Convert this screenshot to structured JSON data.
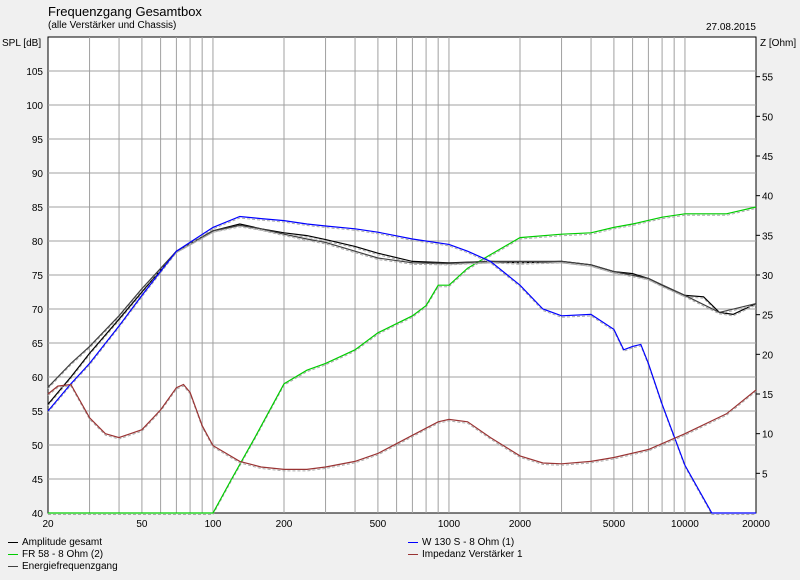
{
  "chart_data": {
    "type": "line",
    "title": "Frequenzgang Gesamtbox",
    "subtitle": "(alle Verstärker und Chassis)",
    "date": "27.08.2015",
    "ylabel_left": "SPL [dB]",
    "ylabel_right": "Z [Ohm]",
    "xscale": "log",
    "xlim": [
      20,
      20000
    ],
    "ylim_left": [
      40,
      110
    ],
    "ylim_right": [
      0,
      60
    ],
    "grid": true,
    "x_ticks": [
      20,
      50,
      100,
      200,
      500,
      1000,
      2000,
      5000,
      10000,
      20000
    ],
    "x_tick_labels": [
      "20",
      "50",
      "100",
      "200",
      "500",
      "1000",
      "2000",
      "5000",
      "10000",
      "20000"
    ],
    "y_left_ticks": [
      40,
      45,
      50,
      55,
      60,
      65,
      70,
      75,
      80,
      85,
      90,
      95,
      100,
      105
    ],
    "y_left_tick_labels": [
      "40",
      "45",
      "50",
      "55",
      "60",
      "65",
      "70",
      "75",
      "80",
      "85",
      "90",
      "95",
      "100",
      "105"
    ],
    "y_right_ticks": [
      5,
      10,
      15,
      20,
      25,
      30,
      35,
      40,
      45,
      50,
      55
    ],
    "y_right_tick_labels": [
      "5",
      "10",
      "15",
      "20",
      "25",
      "30",
      "35",
      "40",
      "45",
      "50",
      "55"
    ],
    "series": [
      {
        "name": "Amplitude gesamt",
        "color": "#000000",
        "axis": "left",
        "points": [
          [
            20,
            56
          ],
          [
            25,
            60
          ],
          [
            30,
            63.5
          ],
          [
            40,
            68.5
          ],
          [
            50,
            72.5
          ],
          [
            70,
            78.5
          ],
          [
            100,
            81.5
          ],
          [
            130,
            82.5
          ],
          [
            160,
            81.8
          ],
          [
            200,
            81.2
          ],
          [
            250,
            80.8
          ],
          [
            300,
            80.2
          ],
          [
            400,
            79.2
          ],
          [
            500,
            78.2
          ],
          [
            700,
            77
          ],
          [
            1000,
            76.8
          ],
          [
            1500,
            77
          ],
          [
            2000,
            76.8
          ],
          [
            3000,
            77
          ],
          [
            4000,
            76.5
          ],
          [
            5000,
            75.5
          ],
          [
            6000,
            75.2
          ],
          [
            7000,
            74.5
          ],
          [
            8000,
            73.5
          ],
          [
            10000,
            72
          ],
          [
            12000,
            71.8
          ],
          [
            14000,
            69.5
          ],
          [
            16000,
            69.2
          ],
          [
            20000,
            70.8
          ]
        ]
      },
      {
        "name": "FR 58 - 8 Ohm (2)",
        "color": "#00cc00",
        "axis": "left",
        "points": [
          [
            20,
            40
          ],
          [
            90,
            40
          ],
          [
            100,
            40
          ],
          [
            120,
            45
          ],
          [
            150,
            51
          ],
          [
            200,
            59
          ],
          [
            250,
            61
          ],
          [
            300,
            62
          ],
          [
            400,
            64
          ],
          [
            500,
            66.5
          ],
          [
            700,
            69
          ],
          [
            800,
            70.5
          ],
          [
            900,
            73.5
          ],
          [
            1000,
            73.5
          ],
          [
            1200,
            76
          ],
          [
            1500,
            78
          ],
          [
            2000,
            80.5
          ],
          [
            3000,
            81
          ],
          [
            4000,
            81.2
          ],
          [
            5000,
            82
          ],
          [
            6000,
            82.5
          ],
          [
            8000,
            83.5
          ],
          [
            10000,
            84
          ],
          [
            15000,
            84
          ],
          [
            20000,
            85
          ]
        ]
      },
      {
        "name": "Energiefrequenzgang",
        "color": "#404040",
        "axis": "left",
        "points": [
          [
            20,
            58.5
          ],
          [
            25,
            62
          ],
          [
            30,
            64.5
          ],
          [
            40,
            69
          ],
          [
            50,
            73
          ],
          [
            70,
            78.5
          ],
          [
            100,
            81.5
          ],
          [
            130,
            82.3
          ],
          [
            160,
            81.8
          ],
          [
            200,
            81
          ],
          [
            250,
            80.3
          ],
          [
            300,
            79.8
          ],
          [
            400,
            78.5
          ],
          [
            500,
            77.5
          ],
          [
            700,
            76.8
          ],
          [
            1000,
            76.7
          ],
          [
            1500,
            77
          ],
          [
            2000,
            77
          ],
          [
            3000,
            77
          ],
          [
            4000,
            76.5
          ],
          [
            5000,
            75.5
          ],
          [
            7000,
            74.5
          ],
          [
            10000,
            72
          ],
          [
            14000,
            69.5
          ],
          [
            20000,
            70.8
          ]
        ]
      },
      {
        "name": "W 130 S - 8 Ohm (1)",
        "color": "#0000ff",
        "axis": "left",
        "points": [
          [
            20,
            55
          ],
          [
            25,
            59
          ],
          [
            30,
            62
          ],
          [
            40,
            67.5
          ],
          [
            50,
            72
          ],
          [
            70,
            78.5
          ],
          [
            100,
            82
          ],
          [
            130,
            83.6
          ],
          [
            160,
            83.3
          ],
          [
            200,
            83
          ],
          [
            250,
            82.5
          ],
          [
            300,
            82.2
          ],
          [
            400,
            81.8
          ],
          [
            500,
            81.3
          ],
          [
            700,
            80.3
          ],
          [
            1000,
            79.5
          ],
          [
            1200,
            78.5
          ],
          [
            1500,
            77
          ],
          [
            2000,
            73.5
          ],
          [
            2500,
            70
          ],
          [
            3000,
            69
          ],
          [
            4000,
            69.2
          ],
          [
            5000,
            67
          ],
          [
            5500,
            64
          ],
          [
            6000,
            64.5
          ],
          [
            6500,
            64.8
          ],
          [
            7000,
            62
          ],
          [
            8000,
            56
          ],
          [
            10000,
            47
          ],
          [
            13000,
            40
          ],
          [
            20000,
            40
          ]
        ]
      },
      {
        "name": "Impedanz Verstärker 1",
        "color": "#993333",
        "axis": "right",
        "points": [
          [
            20,
            15
          ],
          [
            22,
            16
          ],
          [
            25,
            16.2
          ],
          [
            30,
            12
          ],
          [
            35,
            10
          ],
          [
            40,
            9.5
          ],
          [
            50,
            10.5
          ],
          [
            60,
            13
          ],
          [
            70,
            15.8
          ],
          [
            75,
            16.2
          ],
          [
            80,
            15.2
          ],
          [
            90,
            11
          ],
          [
            100,
            8.5
          ],
          [
            130,
            6.5
          ],
          [
            160,
            5.8
          ],
          [
            200,
            5.5
          ],
          [
            250,
            5.5
          ],
          [
            300,
            5.8
          ],
          [
            400,
            6.5
          ],
          [
            500,
            7.5
          ],
          [
            700,
            9.8
          ],
          [
            900,
            11.5
          ],
          [
            1000,
            11.8
          ],
          [
            1200,
            11.5
          ],
          [
            1500,
            9.5
          ],
          [
            2000,
            7.2
          ],
          [
            2500,
            6.3
          ],
          [
            3000,
            6.2
          ],
          [
            4000,
            6.5
          ],
          [
            5000,
            7
          ],
          [
            7000,
            8
          ],
          [
            10000,
            10
          ],
          [
            15000,
            12.5
          ],
          [
            20000,
            15.5
          ]
        ]
      }
    ]
  }
}
